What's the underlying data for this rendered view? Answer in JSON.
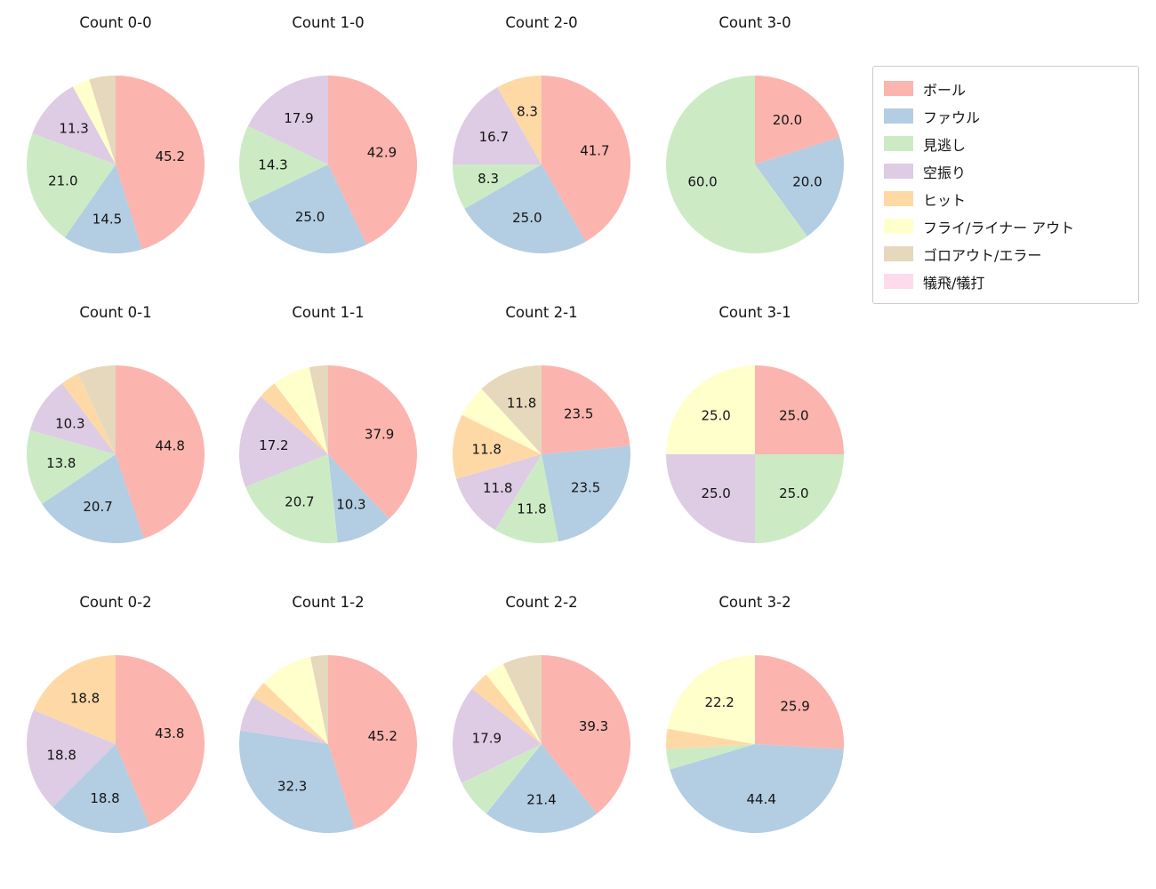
{
  "colors": {
    "ball": "#fbb4ae",
    "foul": "#b3cde3",
    "called_strike": "#ccebc5",
    "swinging_strike": "#decbe4",
    "hit": "#fed9a6",
    "fly_liner_out": "#ffffcc",
    "ground_out_error": "#e5d8bd",
    "sac_fly_bunt": "#fddaec"
  },
  "legend": {
    "items": [
      {
        "key": "ball",
        "label": "ボール"
      },
      {
        "key": "foul",
        "label": "ファウル"
      },
      {
        "key": "called_strike",
        "label": "見逃し"
      },
      {
        "key": "swinging_strike",
        "label": "空振り"
      },
      {
        "key": "hit",
        "label": "ヒット"
      },
      {
        "key": "fly_liner_out",
        "label": "フライ/ライナー アウト"
      },
      {
        "key": "ground_out_error",
        "label": "ゴロアウト/エラー"
      },
      {
        "key": "sac_fly_bunt",
        "label": "犠飛/犠打"
      }
    ]
  },
  "chart_data": [
    {
      "type": "pie",
      "title": "Count 0-0",
      "start_angle_deg": 90,
      "direction": "clockwise",
      "slices": [
        {
          "key": "ball",
          "name": "ボール",
          "pct": 45.2,
          "label": "45.2"
        },
        {
          "key": "foul",
          "name": "ファウル",
          "pct": 14.5,
          "label": "14.5"
        },
        {
          "key": "called_strike",
          "name": "見逃し",
          "pct": 21.0,
          "label": "21.0"
        },
        {
          "key": "swinging_strike",
          "name": "空振り",
          "pct": 11.3,
          "label": "11.3"
        },
        {
          "key": "fly_liner_out",
          "name": "フライ/ライナー アウト",
          "pct": 3.2,
          "label": ""
        },
        {
          "key": "ground_out_error",
          "name": "ゴロアウト/エラー",
          "pct": 4.8,
          "label": ""
        }
      ]
    },
    {
      "type": "pie",
      "title": "Count 1-0",
      "start_angle_deg": 90,
      "direction": "clockwise",
      "slices": [
        {
          "key": "ball",
          "name": "ボール",
          "pct": 42.9,
          "label": "42.9"
        },
        {
          "key": "foul",
          "name": "ファウル",
          "pct": 25.0,
          "label": "25.0"
        },
        {
          "key": "called_strike",
          "name": "見逃し",
          "pct": 14.3,
          "label": "14.3"
        },
        {
          "key": "swinging_strike",
          "name": "空振り",
          "pct": 17.9,
          "label": "17.9"
        }
      ]
    },
    {
      "type": "pie",
      "title": "Count 2-0",
      "start_angle_deg": 90,
      "direction": "clockwise",
      "slices": [
        {
          "key": "ball",
          "name": "ボール",
          "pct": 41.7,
          "label": "41.7"
        },
        {
          "key": "foul",
          "name": "ファウル",
          "pct": 25.0,
          "label": "25.0"
        },
        {
          "key": "called_strike",
          "name": "見逃し",
          "pct": 8.3,
          "label": "8.3"
        },
        {
          "key": "swinging_strike",
          "name": "空振り",
          "pct": 16.7,
          "label": "16.7"
        },
        {
          "key": "hit",
          "name": "ヒット",
          "pct": 8.3,
          "label": "8.3"
        }
      ]
    },
    {
      "type": "pie",
      "title": "Count 3-0",
      "start_angle_deg": 90,
      "direction": "clockwise",
      "slices": [
        {
          "key": "ball",
          "name": "ボール",
          "pct": 20.0,
          "label": "20.0"
        },
        {
          "key": "foul",
          "name": "ファウル",
          "pct": 20.0,
          "label": "20.0"
        },
        {
          "key": "called_strike",
          "name": "見逃し",
          "pct": 60.0,
          "label": "60.0"
        }
      ]
    },
    {
      "type": "pie",
      "title": "Count 0-1",
      "start_angle_deg": 90,
      "direction": "clockwise",
      "slices": [
        {
          "key": "ball",
          "name": "ボール",
          "pct": 44.8,
          "label": "44.8"
        },
        {
          "key": "foul",
          "name": "ファウル",
          "pct": 20.7,
          "label": "20.7"
        },
        {
          "key": "called_strike",
          "name": "見逃し",
          "pct": 13.8,
          "label": "13.8"
        },
        {
          "key": "swinging_strike",
          "name": "空振り",
          "pct": 10.3,
          "label": "10.3"
        },
        {
          "key": "hit",
          "name": "ヒット",
          "pct": 3.4,
          "label": ""
        },
        {
          "key": "ground_out_error",
          "name": "ゴロアウト/エラー",
          "pct": 6.9,
          "label": ""
        }
      ]
    },
    {
      "type": "pie",
      "title": "Count 1-1",
      "start_angle_deg": 90,
      "direction": "clockwise",
      "slices": [
        {
          "key": "ball",
          "name": "ボール",
          "pct": 37.9,
          "label": "37.9"
        },
        {
          "key": "foul",
          "name": "ファウル",
          "pct": 10.3,
          "label": "10.3"
        },
        {
          "key": "called_strike",
          "name": "見逃し",
          "pct": 20.7,
          "label": "20.7"
        },
        {
          "key": "swinging_strike",
          "name": "空振り",
          "pct": 17.2,
          "label": "17.2"
        },
        {
          "key": "hit",
          "name": "ヒット",
          "pct": 3.4,
          "label": ""
        },
        {
          "key": "fly_liner_out",
          "name": "フライ/ライナー アウト",
          "pct": 6.9,
          "label": ""
        },
        {
          "key": "ground_out_error",
          "name": "ゴロアウト/エラー",
          "pct": 3.4,
          "label": ""
        }
      ]
    },
    {
      "type": "pie",
      "title": "Count 2-1",
      "start_angle_deg": 90,
      "direction": "clockwise",
      "slices": [
        {
          "key": "ball",
          "name": "ボール",
          "pct": 23.5,
          "label": "23.5"
        },
        {
          "key": "foul",
          "name": "ファウル",
          "pct": 23.5,
          "label": "23.5"
        },
        {
          "key": "called_strike",
          "name": "見逃し",
          "pct": 11.8,
          "label": "11.8"
        },
        {
          "key": "swinging_strike",
          "name": "空振り",
          "pct": 11.8,
          "label": "11.8"
        },
        {
          "key": "hit",
          "name": "ヒット",
          "pct": 11.8,
          "label": "11.8"
        },
        {
          "key": "fly_liner_out",
          "name": "フライ/ライナー アウト",
          "pct": 5.9,
          "label": ""
        },
        {
          "key": "ground_out_error",
          "name": "ゴロアウト/エラー",
          "pct": 11.8,
          "label": "11.8"
        }
      ]
    },
    {
      "type": "pie",
      "title": "Count 3-1",
      "start_angle_deg": 90,
      "direction": "clockwise",
      "slices": [
        {
          "key": "ball",
          "name": "ボール",
          "pct": 25.0,
          "label": "25.0"
        },
        {
          "key": "called_strike",
          "name": "見逃し",
          "pct": 25.0,
          "label": "25.0"
        },
        {
          "key": "swinging_strike",
          "name": "空振り",
          "pct": 25.0,
          "label": "25.0"
        },
        {
          "key": "fly_liner_out",
          "name": "フライ/ライナー アウト",
          "pct": 25.0,
          "label": "25.0"
        }
      ]
    },
    {
      "type": "pie",
      "title": "Count 0-2",
      "start_angle_deg": 90,
      "direction": "clockwise",
      "slices": [
        {
          "key": "ball",
          "name": "ボール",
          "pct": 43.8,
          "label": "43.8"
        },
        {
          "key": "foul",
          "name": "ファウル",
          "pct": 18.8,
          "label": "18.8"
        },
        {
          "key": "swinging_strike",
          "name": "空振り",
          "pct": 18.8,
          "label": "18.8"
        },
        {
          "key": "hit",
          "name": "ヒット",
          "pct": 18.8,
          "label": "18.8"
        }
      ]
    },
    {
      "type": "pie",
      "title": "Count 1-2",
      "start_angle_deg": 90,
      "direction": "clockwise",
      "slices": [
        {
          "key": "ball",
          "name": "ボール",
          "pct": 45.2,
          "label": "45.2"
        },
        {
          "key": "foul",
          "name": "ファウル",
          "pct": 32.3,
          "label": "32.3"
        },
        {
          "key": "swinging_strike",
          "name": "空振り",
          "pct": 6.5,
          "label": ""
        },
        {
          "key": "hit",
          "name": "ヒット",
          "pct": 3.2,
          "label": ""
        },
        {
          "key": "fly_liner_out",
          "name": "フライ/ライナー アウト",
          "pct": 9.7,
          "label": ""
        },
        {
          "key": "ground_out_error",
          "name": "ゴロアウト/エラー",
          "pct": 3.2,
          "label": ""
        }
      ]
    },
    {
      "type": "pie",
      "title": "Count 2-2",
      "start_angle_deg": 90,
      "direction": "clockwise",
      "slices": [
        {
          "key": "ball",
          "name": "ボール",
          "pct": 39.3,
          "label": "39.3"
        },
        {
          "key": "foul",
          "name": "ファウル",
          "pct": 21.4,
          "label": "21.4"
        },
        {
          "key": "called_strike",
          "name": "見逃し",
          "pct": 7.1,
          "label": ""
        },
        {
          "key": "swinging_strike",
          "name": "空振り",
          "pct": 17.9,
          "label": "17.9"
        },
        {
          "key": "hit",
          "name": "ヒット",
          "pct": 3.6,
          "label": ""
        },
        {
          "key": "fly_liner_out",
          "name": "フライ/ライナー アウト",
          "pct": 3.6,
          "label": ""
        },
        {
          "key": "ground_out_error",
          "name": "ゴロアウト/エラー",
          "pct": 7.1,
          "label": ""
        }
      ]
    },
    {
      "type": "pie",
      "title": "Count 3-2",
      "start_angle_deg": 90,
      "direction": "clockwise",
      "slices": [
        {
          "key": "ball",
          "name": "ボール",
          "pct": 25.9,
          "label": "25.9"
        },
        {
          "key": "foul",
          "name": "ファウル",
          "pct": 44.4,
          "label": "44.4"
        },
        {
          "key": "called_strike",
          "name": "見逃し",
          "pct": 3.7,
          "label": ""
        },
        {
          "key": "hit",
          "name": "ヒット",
          "pct": 3.7,
          "label": ""
        },
        {
          "key": "fly_liner_out",
          "name": "フライ/ライナー アウト",
          "pct": 22.2,
          "label": "22.2"
        }
      ]
    }
  ]
}
